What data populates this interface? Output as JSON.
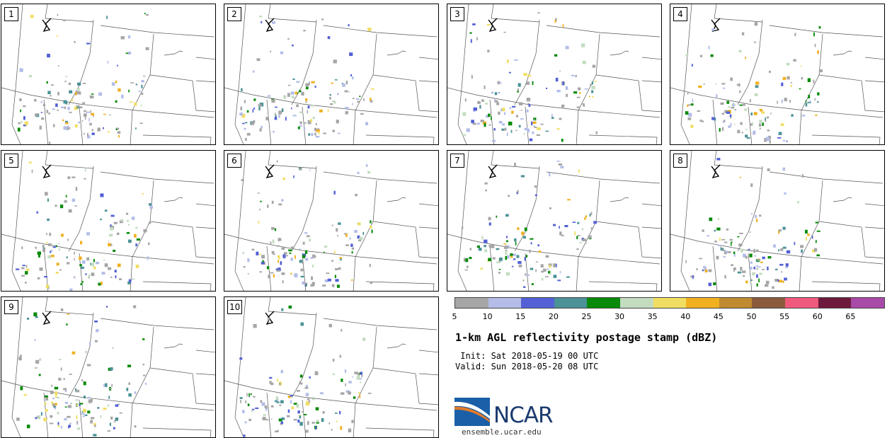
{
  "panels": [
    {
      "label": "1"
    },
    {
      "label": "2"
    },
    {
      "label": "3"
    },
    {
      "label": "4"
    },
    {
      "label": "5"
    },
    {
      "label": "6"
    },
    {
      "label": "7"
    },
    {
      "label": "8"
    },
    {
      "label": "9"
    },
    {
      "label": "10"
    }
  ],
  "legend": {
    "colors": [
      "#a6a6a6",
      "#b3bde8",
      "#5360d6",
      "#4b9296",
      "#0a8a0a",
      "#c3dcc0",
      "#f0de64",
      "#f0b020",
      "#c08a30",
      "#8c5a3c",
      "#f05a7c",
      "#6e1a3c",
      "#a84aa8"
    ],
    "ticks": [
      "5",
      "10",
      "15",
      "20",
      "25",
      "30",
      "35",
      "40",
      "45",
      "50",
      "55",
      "60",
      "65"
    ],
    "unit": "dBZ"
  },
  "title": "1-km AGL reflectivity postage stamp (dBZ)",
  "init": " Init: Sat 2018-05-19 00 UTC",
  "valid": "Valid: Sun 2018-05-20 08 UTC",
  "logo": {
    "text": "NCAR",
    "url": "ensemble.ucar.edu"
  }
}
